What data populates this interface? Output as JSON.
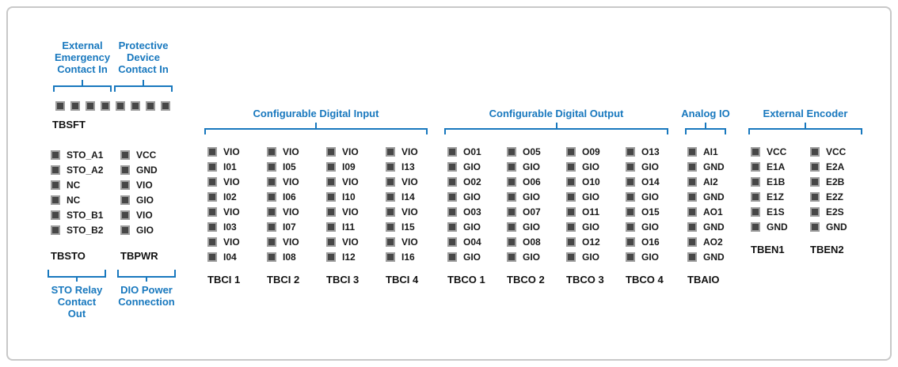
{
  "colors": {
    "accent": "#1878BE",
    "pin": "#474747",
    "pin-edge": "#9E9E9E",
    "text": "#1A1A1A",
    "panel-border": "#C8C8C8"
  },
  "tbsft": {
    "label": "TBSFT",
    "pin_count": 8,
    "annotations": [
      {
        "label": "External\nEmergency\nContact In"
      },
      {
        "label": "Protective\nDevice\nContact In"
      }
    ]
  },
  "left_blocks": [
    {
      "label": "TBSTO",
      "pins": [
        "STO_A1",
        "STO_A2",
        "NC",
        "NC",
        "STO_B1",
        "STO_B2"
      ],
      "annotation": "STO Relay\nContact Out"
    },
    {
      "label": "TBPWR",
      "pins": [
        "VCC",
        "GND",
        "VIO",
        "GIO",
        "VIO",
        "GIO"
      ],
      "annotation": "DIO Power\nConnection"
    }
  ],
  "groups": [
    {
      "header": "Configurable Digital Input",
      "blocks": [
        {
          "label": "TBCI 1",
          "pins": [
            "VIO",
            "I01",
            "VIO",
            "I02",
            "VIO",
            "I03",
            "VIO",
            "I04"
          ]
        },
        {
          "label": "TBCI 2",
          "pins": [
            "VIO",
            "I05",
            "VIO",
            "I06",
            "VIO",
            "I07",
            "VIO",
            "I08"
          ]
        },
        {
          "label": "TBCI 3",
          "pins": [
            "VIO",
            "I09",
            "VIO",
            "I10",
            "VIO",
            "I11",
            "VIO",
            "I12"
          ]
        },
        {
          "label": "TBCI 4",
          "pins": [
            "VIO",
            "I13",
            "VIO",
            "I14",
            "VIO",
            "I15",
            "VIO",
            "I16"
          ]
        }
      ]
    },
    {
      "header": "Configurable Digital Output",
      "blocks": [
        {
          "label": "TBCO 1",
          "pins": [
            "O01",
            "GIO",
            "O02",
            "GIO",
            "O03",
            "GIO",
            "O04",
            "GIO"
          ]
        },
        {
          "label": "TBCO 2",
          "pins": [
            "O05",
            "GIO",
            "O06",
            "GIO",
            "O07",
            "GIO",
            "O08",
            "GIO"
          ]
        },
        {
          "label": "TBCO 3",
          "pins": [
            "O09",
            "GIO",
            "O10",
            "GIO",
            "O11",
            "GIO",
            "O12",
            "GIO"
          ]
        },
        {
          "label": "TBCO 4",
          "pins": [
            "O13",
            "GIO",
            "O14",
            "GIO",
            "O15",
            "GIO",
            "O16",
            "GIO"
          ]
        }
      ]
    },
    {
      "header": "Analog IO",
      "blocks": [
        {
          "label": "TBAIO",
          "pins": [
            "AI1",
            "GND",
            "AI2",
            "GND",
            "AO1",
            "GND",
            "AO2",
            "GND"
          ]
        }
      ]
    },
    {
      "header": "External Encoder",
      "blocks": [
        {
          "label": "TBEN1",
          "pins": [
            "VCC",
            "E1A",
            "E1B",
            "E1Z",
            "E1S",
            "GND"
          ]
        },
        {
          "label": "TBEN2",
          "pins": [
            "VCC",
            "E2A",
            "E2B",
            "E2Z",
            "E2S",
            "GND"
          ]
        }
      ]
    }
  ]
}
